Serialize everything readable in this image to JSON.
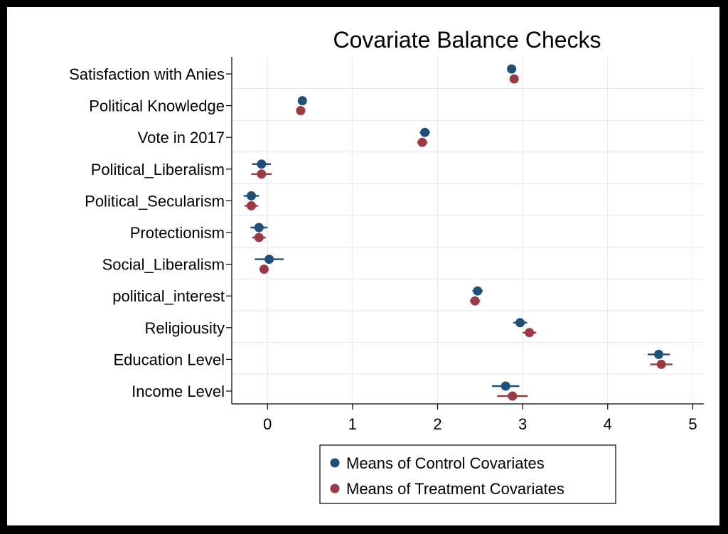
{
  "chart_data": {
    "type": "scatter",
    "title": "Covariate Balance Checks",
    "xlabel": "",
    "ylabel": "",
    "xlim": [
      -0.42,
      5.13
    ],
    "xticks": [
      0,
      1,
      2,
      3,
      4,
      5
    ],
    "grid": true,
    "legend_position": "bottom-center",
    "categories": [
      "Satisfaction with Anies",
      "Political Knowledge",
      "Vote in 2017",
      "Political_Liberalism",
      "Political_Secularism",
      "Protectionism",
      "Social_Liberalism",
      "political_interest",
      "Religiousity",
      "Education Level",
      "Income Level"
    ],
    "series": [
      {
        "name": "Means of Control Covariates",
        "color": "#1f4e79",
        "values": [
          2.87,
          0.41,
          1.85,
          -0.07,
          -0.19,
          -0.1,
          0.02,
          2.47,
          2.97,
          4.6,
          2.8
        ],
        "ci_low": [
          2.83,
          0.38,
          1.79,
          -0.18,
          -0.28,
          -0.2,
          -0.15,
          2.41,
          2.89,
          4.47,
          2.64
        ],
        "ci_high": [
          2.91,
          0.44,
          1.91,
          0.04,
          -0.1,
          0.0,
          0.19,
          2.53,
          3.05,
          4.73,
          2.96
        ]
      },
      {
        "name": "Means of Treatment Covariates",
        "color": "#9b3a42",
        "values": [
          2.9,
          0.39,
          1.82,
          -0.07,
          -0.19,
          -0.1,
          -0.04,
          2.44,
          3.08,
          4.63,
          2.88
        ],
        "ci_low": [
          2.86,
          0.36,
          1.76,
          -0.19,
          -0.27,
          -0.18,
          -0.09,
          2.38,
          3.0,
          4.5,
          2.7
        ],
        "ci_high": [
          2.94,
          0.42,
          1.88,
          0.05,
          -0.11,
          -0.02,
          0.01,
          2.5,
          3.16,
          4.76,
          3.06
        ]
      }
    ]
  }
}
